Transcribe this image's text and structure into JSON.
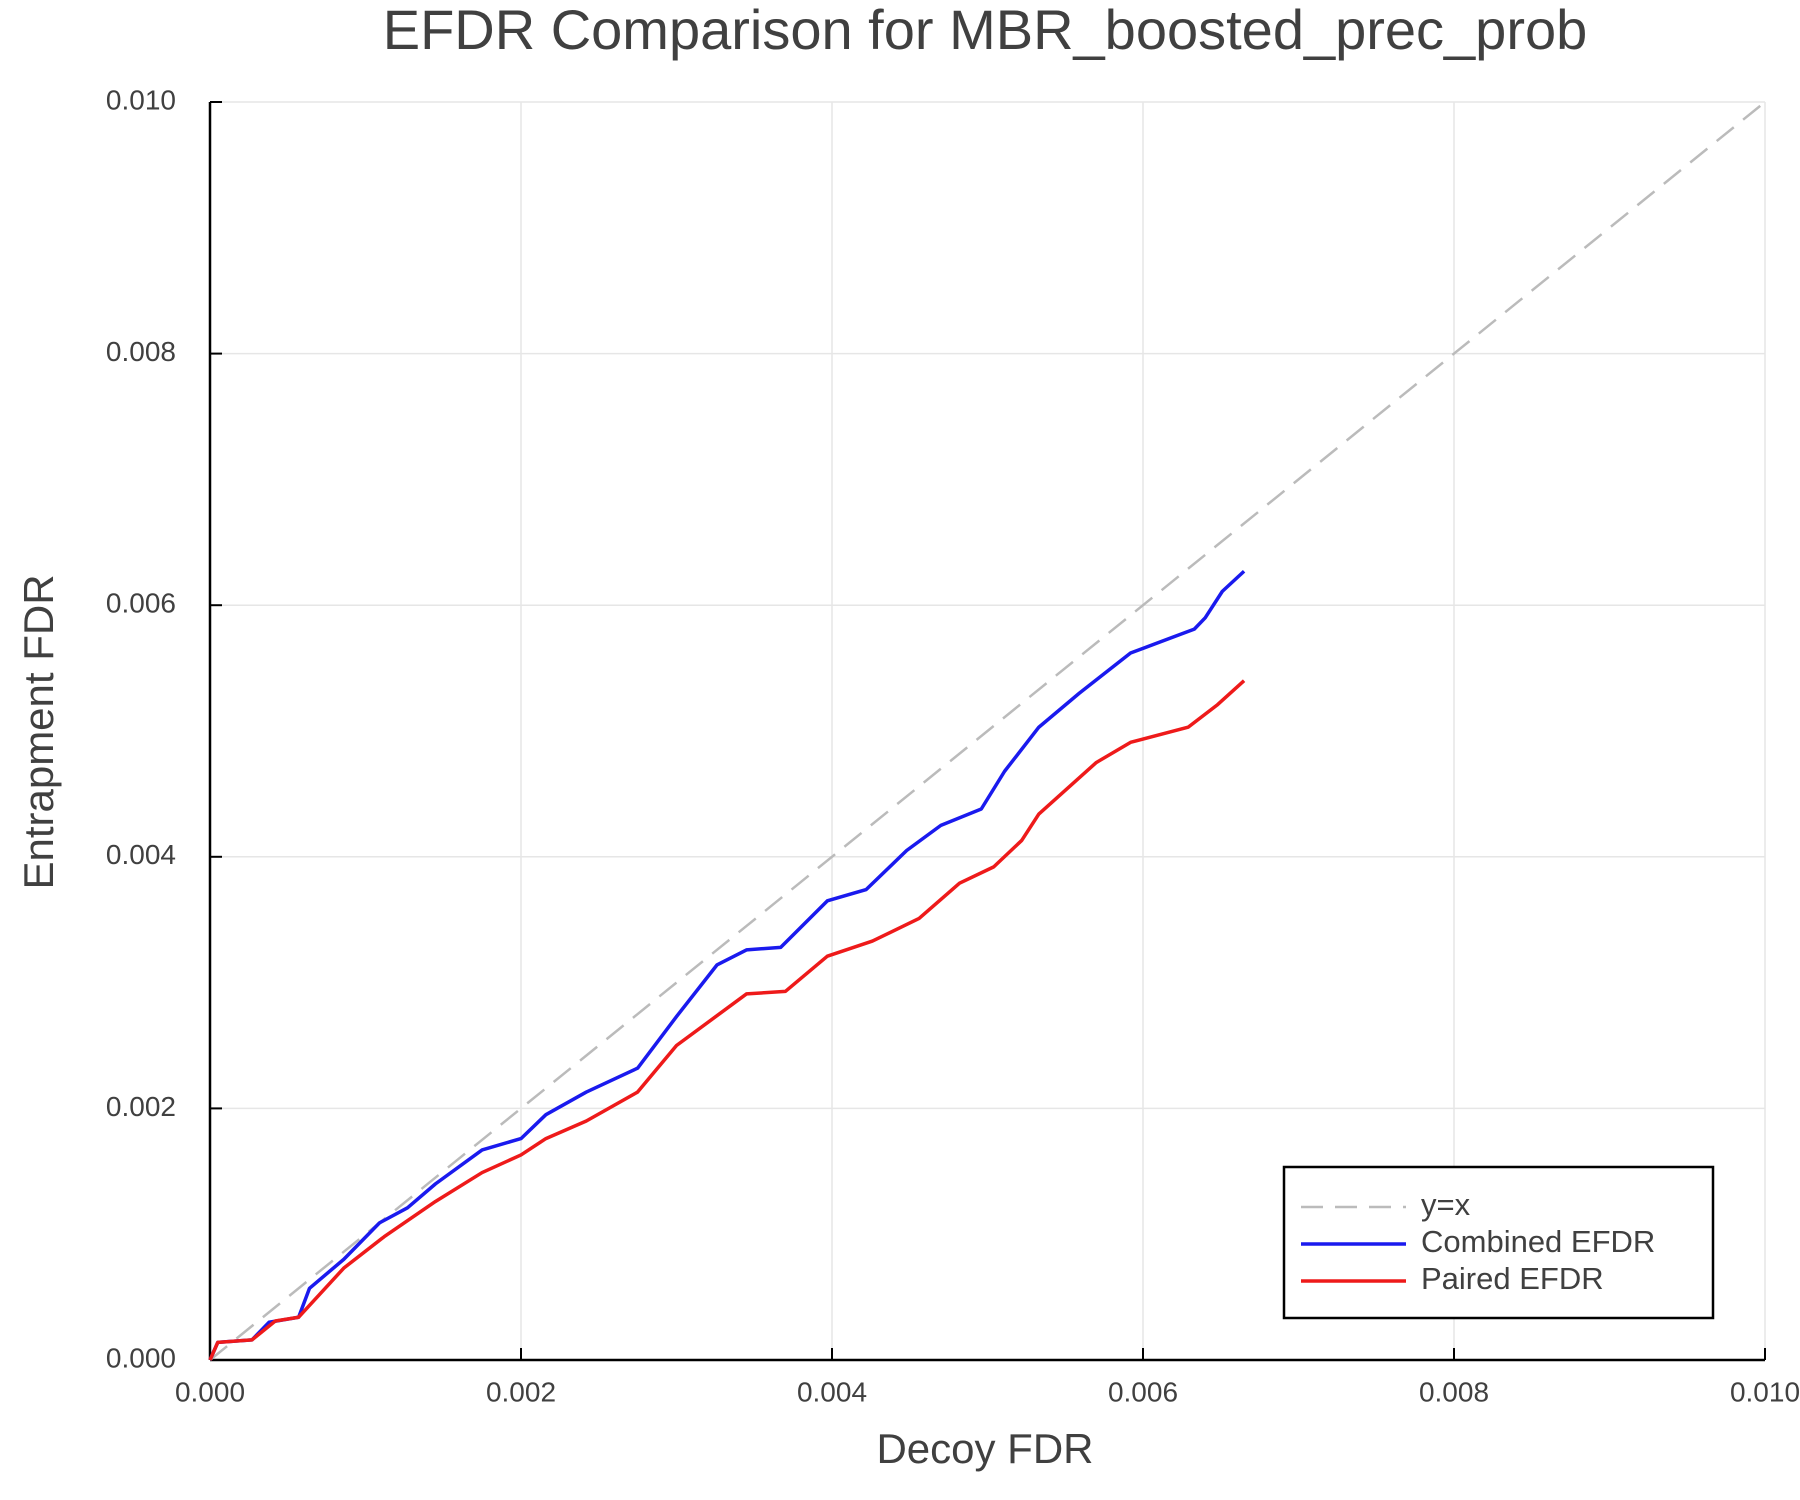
{
  "chart_data": {
    "type": "line",
    "title": "EFDR Comparison for MBR_boosted_prec_prob",
    "x_label": "Decoy FDR",
    "y_label": "Entrapment FDR",
    "xlim": [
      0,
      0.01
    ],
    "ylim": [
      0,
      0.01
    ],
    "xticks": [
      {
        "value": 0,
        "label": "0.000"
      },
      0.002,
      0.004,
      0.006,
      0.008,
      {
        "value": 0.01,
        "label": "0.010"
      }
    ],
    "yticks": [
      {
        "value": 0,
        "label": "0.000"
      },
      0.002,
      0.004,
      0.006,
      0.008,
      {
        "value": 0.01,
        "label": "0.010"
      }
    ],
    "grid": true,
    "legend": "lower right",
    "series": [
      {
        "name": "y=x",
        "color": "#bbbbbb",
        "dashed": true,
        "x": [
          0,
          0.01
        ],
        "values": [
          0,
          0.01
        ]
      },
      {
        "name": "Combined EFDR",
        "color": "#1a1aee",
        "dashed": false,
        "x": [
          0,
          5e-05,
          0.00027,
          0.00038,
          0.00057,
          0.00064,
          0.00086,
          0.00109,
          0.00127,
          0.00145,
          0.00175,
          0.002,
          0.00216,
          0.00242,
          0.00275,
          0.003,
          0.00326,
          0.00345,
          0.00367,
          0.00397,
          0.00422,
          0.00448,
          0.0047,
          0.00496,
          0.00511,
          0.00533,
          0.00559,
          0.00592,
          0.00633,
          0.0064,
          0.00651,
          0.00665
        ],
        "values": [
          0,
          0.00014,
          0.00016,
          0.0003,
          0.00034,
          0.00057,
          0.0008,
          0.00109,
          0.00121,
          0.0014,
          0.00167,
          0.00176,
          0.00195,
          0.00213,
          0.00232,
          0.00273,
          0.00314,
          0.00326,
          0.00328,
          0.00365,
          0.00374,
          0.00405,
          0.00425,
          0.00438,
          0.00468,
          0.00503,
          0.0053,
          0.00562,
          0.00581,
          0.0059,
          0.00611,
          0.00627
        ]
      },
      {
        "name": "Paired EFDR",
        "color": "#ee1a1a",
        "dashed": false,
        "x": [
          0,
          5e-05,
          0.00027,
          0.00042,
          0.00057,
          0.00086,
          0.00112,
          0.00145,
          0.00175,
          0.002,
          0.00216,
          0.00242,
          0.00275,
          0.003,
          0.00345,
          0.0037,
          0.00397,
          0.00426,
          0.00456,
          0.00482,
          0.00504,
          0.00522,
          0.00533,
          0.0057,
          0.00592,
          0.00629,
          0.00648,
          0.00665
        ],
        "values": [
          0,
          0.00014,
          0.00016,
          0.00031,
          0.00034,
          0.00073,
          0.00098,
          0.00126,
          0.00149,
          0.00163,
          0.00176,
          0.0019,
          0.00213,
          0.0025,
          0.00291,
          0.00293,
          0.00321,
          0.00333,
          0.00351,
          0.00379,
          0.00392,
          0.00413,
          0.00434,
          0.00475,
          0.00491,
          0.00503,
          0.00521,
          0.0054
        ]
      }
    ]
  }
}
